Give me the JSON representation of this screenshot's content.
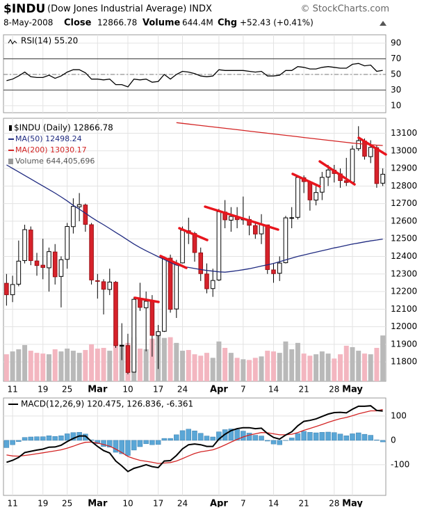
{
  "header": {
    "symbol": "$INDU",
    "name": "(Dow Jones Industrial Average) INDX",
    "source": "© StockCharts.com",
    "date": "8-May-2008",
    "close_label": "Close",
    "close": "12866.78",
    "volume_label": "Volume",
    "volume": "644.4M",
    "chg_label": "Chg",
    "chg": "+52.43 (+0.41%)"
  },
  "chart_data": [
    {
      "type": "line",
      "series": [
        {
          "name": "RSI(14) 55.20",
          "color": "#000000",
          "values": [
            42,
            44,
            48,
            53,
            47,
            46,
            46,
            49,
            45,
            48,
            53,
            56,
            56,
            52,
            44,
            44,
            43,
            44,
            37,
            37,
            34,
            44,
            43,
            44,
            40,
            41,
            50,
            44,
            50,
            54,
            53,
            51,
            48,
            47,
            48,
            56,
            55,
            55,
            55,
            55,
            54,
            53,
            54,
            48,
            48,
            49,
            55,
            55,
            60,
            59,
            57,
            57,
            59,
            60,
            59,
            58,
            58,
            63,
            64,
            61,
            62,
            54,
            55.2
          ]
        }
      ],
      "ylim": [
        1,
        100.7
      ],
      "yticks": [
        90,
        70,
        50,
        30,
        10
      ],
      "level_lines": [
        70,
        30
      ],
      "dashed_line": 50,
      "grid": true
    },
    {
      "type": "candlestick",
      "title": "$INDU (Daily) 12866.78",
      "categories": [
        null,
        "11",
        null,
        null,
        null,
        null,
        "19",
        null,
        null,
        null,
        "25",
        null,
        null,
        null,
        null,
        "Mar",
        null,
        null,
        null,
        null,
        "10",
        null,
        null,
        null,
        null,
        "17",
        null,
        null,
        null,
        "24",
        null,
        null,
        null,
        null,
        null,
        "Apr",
        null,
        null,
        null,
        "7",
        null,
        null,
        null,
        null,
        "14",
        null,
        null,
        null,
        null,
        "21",
        null,
        null,
        null,
        null,
        "28",
        null,
        null,
        "May",
        null,
        null,
        null,
        null,
        null
      ],
      "open": [
        12247,
        12182,
        12242,
        12376,
        12550,
        12374,
        12350,
        12335,
        12425,
        12286,
        12383,
        12569,
        12682,
        12692,
        12580,
        12262,
        12256,
        12212,
        12253,
        11892,
        11893,
        11742,
        12154,
        12108,
        12144,
        11950,
        11974,
        12390,
        12101,
        12363,
        12546,
        12530,
        12420,
        12300,
        12217,
        12266,
        12652,
        12606,
        12625,
        12610,
        12610,
        12575,
        12528,
        12579,
        12323,
        12304,
        12364,
        12617,
        12622,
        12847,
        12823,
        12720,
        12765,
        12851,
        12890,
        12869,
        12830,
        12822,
        13012,
        13056,
        12967,
        13018,
        12816
      ],
      "high": [
        12300,
        12290,
        12490,
        12580,
        12570,
        12420,
        12500,
        12450,
        12470,
        12400,
        12590,
        12730,
        12760,
        12700,
        12590,
        12300,
        12270,
        12330,
        12260,
        12020,
        11960,
        12170,
        12250,
        12200,
        12180,
        12010,
        12400,
        12410,
        12380,
        12570,
        12620,
        12540,
        12450,
        12360,
        12330,
        12670,
        12720,
        12680,
        12680,
        12740,
        12630,
        12600,
        12640,
        12580,
        12360,
        12400,
        12630,
        12680,
        12860,
        12860,
        12830,
        12800,
        12880,
        12920,
        12920,
        12900,
        12960,
        13030,
        13140,
        13070,
        13060,
        13030,
        12900
      ],
      "low": [
        12120,
        12140,
        12230,
        12360,
        12350,
        12290,
        12270,
        12200,
        12240,
        12110,
        12330,
        12530,
        12600,
        12540,
        12240,
        12160,
        12070,
        12180,
        11880,
        11810,
        11730,
        11740,
        12090,
        11860,
        11830,
        11760,
        11970,
        12080,
        12050,
        12360,
        12470,
        12370,
        12260,
        12190,
        12170,
        12260,
        12560,
        12540,
        12560,
        12580,
        12520,
        12500,
        12470,
        12300,
        12250,
        12260,
        12360,
        12560,
        12610,
        12760,
        12660,
        12690,
        12720,
        12800,
        12820,
        12790,
        12800,
        12810,
        13000,
        12950,
        12930,
        12790,
        12800
      ],
      "close": [
        12182,
        12240,
        12373,
        12552,
        12376,
        12348,
        12337,
        12427,
        12284,
        12381,
        12570,
        12684,
        12694,
        12582,
        12266,
        12258,
        12213,
        12254,
        11893,
        11894,
        11740,
        12156,
        12110,
        12145,
        11951,
        11972,
        12392,
        12099,
        12361,
        12548,
        12532,
        12422,
        12302,
        12216,
        12263,
        12654,
        12608,
        12627,
        12609,
        12612,
        12577,
        12527,
        12581,
        12325,
        12302,
        12362,
        12619,
        12620,
        12849,
        12825,
        12721,
        12763,
        12849,
        12891,
        12871,
        12831,
        12820,
        13010,
        13058,
        12969,
        13020,
        12814,
        12867
      ],
      "up_color": "#ffffff",
      "down_color": "#d7222b",
      "volume": {
        "name": "Volume 644,405,696",
        "ylim": [
          0,
          3700000000
        ],
        "up_color": "#b9b9b9",
        "down_color": "#f3b6c0",
        "values": [
          380000000,
          420000000,
          450000000,
          510000000,
          430000000,
          400000000,
          390000000,
          380000000,
          450000000,
          420000000,
          460000000,
          430000000,
          400000000,
          440000000,
          520000000,
          460000000,
          470000000,
          430000000,
          560000000,
          520000000,
          540000000,
          620000000,
          460000000,
          450000000,
          600000000,
          700000000,
          610000000,
          620000000,
          540000000,
          430000000,
          440000000,
          380000000,
          360000000,
          400000000,
          330000000,
          560000000,
          470000000,
          400000000,
          330000000,
          310000000,
          300000000,
          330000000,
          350000000,
          430000000,
          420000000,
          400000000,
          560000000,
          450000000,
          540000000,
          390000000,
          360000000,
          380000000,
          420000000,
          390000000,
          320000000,
          380000000,
          500000000,
          480000000,
          430000000,
          390000000,
          380000000,
          470000000,
          644405696
        ]
      },
      "series": [
        {
          "name": "MA(50) 12498.24",
          "color": "#1f2a80",
          "values": [
            12920,
            12900,
            12880,
            12860,
            12840,
            12820,
            12800,
            12780,
            12760,
            12738,
            12715,
            12690,
            12668,
            12645,
            12622,
            12600,
            12580,
            12558,
            12536,
            12515,
            12492,
            12470,
            12450,
            12432,
            12415,
            12398,
            12382,
            12366,
            12350,
            12343,
            12337,
            12331,
            12325,
            12320,
            12316,
            12312,
            12310,
            12314,
            12319,
            12324,
            12330,
            12337,
            12345,
            12352,
            12360,
            12370,
            12380,
            12390,
            12400,
            12408,
            12416,
            12424,
            12432,
            12440,
            12448,
            12455,
            12463,
            12470,
            12476,
            12482,
            12488,
            12493,
            12498.24
          ]
        },
        {
          "name": "MA(200) 13030.17",
          "color": "#d32424",
          "values": [
            null,
            null,
            null,
            null,
            null,
            null,
            null,
            null,
            null,
            null,
            null,
            null,
            null,
            null,
            null,
            null,
            null,
            null,
            null,
            null,
            null,
            null,
            null,
            null,
            null,
            null,
            null,
            null,
            13160,
            13156,
            13152,
            13148,
            13144,
            13140,
            13136,
            13132,
            13128,
            13124,
            13120,
            13116,
            13112,
            13108,
            13104,
            13100,
            13096,
            13092,
            13088,
            13084,
            13080,
            13076,
            13072,
            13068,
            13064,
            13060,
            13056,
            13052,
            13048,
            13044,
            13041,
            13038,
            13035,
            13032,
            13030.17
          ]
        }
      ],
      "ylim": [
        11690,
        13185
      ],
      "yticks": [
        11800,
        11900,
        12000,
        12100,
        12200,
        12300,
        12400,
        12500,
        12600,
        12700,
        12800,
        12900,
        13000,
        13100
      ],
      "grid": true
    },
    {
      "type": "line",
      "title": "MACD(12,26,9) 120.475, 126.836, -6.361",
      "categories": [
        null,
        "11",
        null,
        null,
        null,
        null,
        "19",
        null,
        null,
        null,
        "25",
        null,
        null,
        null,
        null,
        "Mar",
        null,
        null,
        null,
        null,
        "10",
        null,
        null,
        null,
        null,
        "17",
        null,
        null,
        null,
        "24",
        null,
        null,
        null,
        null,
        null,
        "Apr",
        null,
        null,
        null,
        "7",
        null,
        null,
        null,
        null,
        "14",
        null,
        null,
        null,
        null,
        "21",
        null,
        null,
        null,
        null,
        "28",
        null,
        null,
        "May",
        null,
        null,
        null,
        null,
        null
      ],
      "series": [
        {
          "type": "bar",
          "color": "#5aa6d6",
          "values": [
            -30,
            -18,
            -5,
            12,
            14,
            15,
            15,
            19,
            16,
            19,
            27,
            32,
            33,
            26,
            2,
            -14,
            -25,
            -28,
            -49,
            -55,
            -62,
            -40,
            -26,
            -14,
            -18,
            -17,
            8,
            8,
            23,
            40,
            46,
            39,
            29,
            18,
            14,
            35,
            44,
            47,
            44,
            38,
            30,
            21,
            18,
            -3,
            -15,
            -18,
            -1,
            10,
            28,
            37,
            33,
            31,
            33,
            34,
            32,
            26,
            19,
            27,
            31,
            25,
            21,
            2,
            -6.361
          ]
        },
        {
          "type": "line",
          "color": "#d32424",
          "values": [
            -60,
            -64,
            -65,
            -62,
            -59,
            -55,
            -51,
            -47,
            -43,
            -39,
            -32,
            -24,
            -15,
            -8,
            -7,
            -11,
            -17,
            -24,
            -36,
            -50,
            -66,
            -75,
            -82,
            -86,
            -90,
            -95,
            -93,
            -91,
            -85,
            -75,
            -64,
            -54,
            -47,
            -43,
            -39,
            -30,
            -19,
            -7,
            4,
            14,
            22,
            27,
            32,
            31,
            27,
            23,
            23,
            25,
            32,
            41,
            49,
            57,
            65,
            74,
            82,
            89,
            94,
            101,
            109,
            115,
            121,
            121,
            126.836
          ]
        },
        {
          "type": "line",
          "color": "#000000",
          "values": [
            -90,
            -82,
            -70,
            -50,
            -45,
            -40,
            -36,
            -28,
            -27,
            -20,
            -5,
            8,
            18,
            18,
            -5,
            -25,
            -42,
            -52,
            -85,
            -105,
            -128,
            -115,
            -108,
            -100,
            -108,
            -112,
            -85,
            -83,
            -62,
            -35,
            -18,
            -15,
            -18,
            -25,
            -25,
            5,
            25,
            40,
            48,
            52,
            52,
            48,
            50,
            28,
            12,
            5,
            22,
            35,
            60,
            78,
            82,
            88,
            98,
            108,
            114,
            115,
            113,
            128,
            140,
            140,
            142,
            123,
            120.475
          ]
        }
      ],
      "ylim": [
        -226,
        174
      ],
      "yticks": [
        100,
        0,
        -100
      ],
      "grid": true
    }
  ]
}
